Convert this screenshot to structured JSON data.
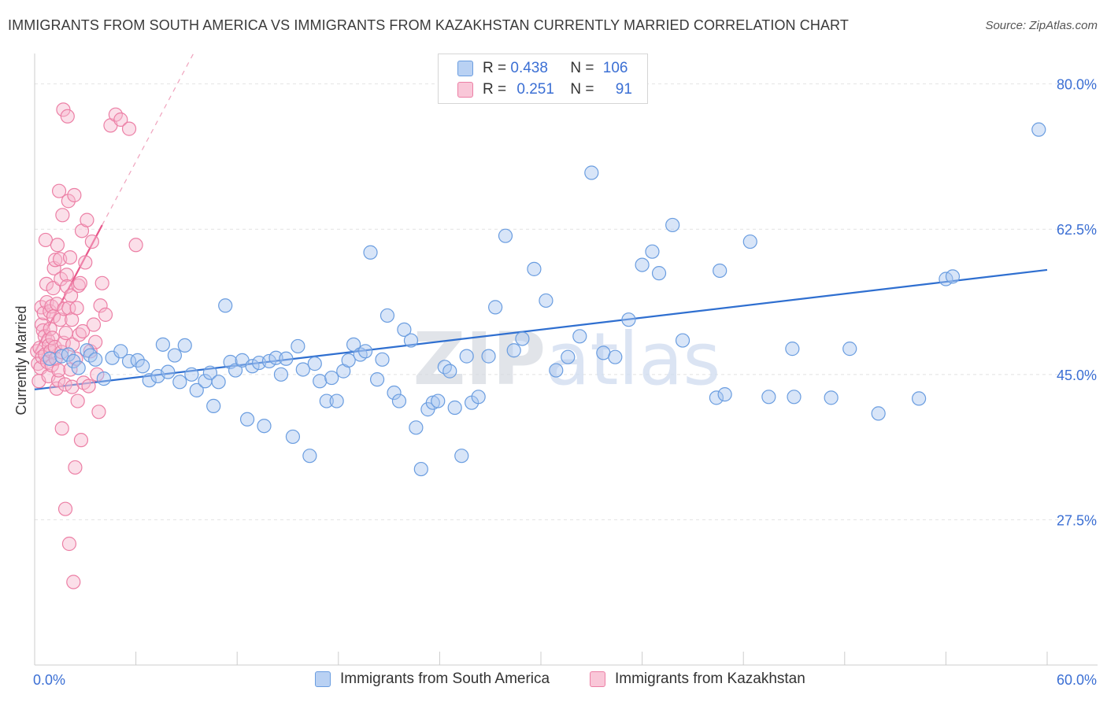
{
  "title": "IMMIGRANTS FROM SOUTH AMERICA VS IMMIGRANTS FROM KAZAKHSTAN CURRENTLY MARRIED CORRELATION CHART",
  "source": "Source: ZipAtlas.com",
  "watermark": "ZIPatlas",
  "chart_data": {
    "type": "scatter",
    "ylabel": "Currently Married",
    "xlim": [
      0,
      60
    ],
    "ylim": [
      10,
      83
    ],
    "x_tick_labels": [
      "0.0%",
      "60.0%"
    ],
    "y_ticks": [
      27.5,
      45.0,
      62.5,
      80.0
    ],
    "y_tick_labels": [
      "27.5%",
      "45.0%",
      "62.5%",
      "80.0%"
    ],
    "legend": [
      {
        "r_label": "R = ",
        "r_value": "0.438",
        "n_label": "N = ",
        "n_value": "106"
      },
      {
        "r_label": "R = ",
        "r_value": "0.251",
        "n_label": "N = ",
        "n_value": "91"
      }
    ],
    "series": [
      {
        "name": "Immigrants from South America",
        "color": "#6a9de0",
        "fill": "#a9c6ef",
        "trendline": {
          "x": [
            0,
            60
          ],
          "y": [
            43.2,
            57.6
          ]
        },
        "points": [
          [
            0.9,
            46.9
          ],
          [
            1.6,
            47.2
          ],
          [
            2.0,
            47.4
          ],
          [
            2.3,
            46.6
          ],
          [
            2.6,
            45.8
          ],
          [
            3.1,
            47.9
          ],
          [
            3.3,
            47.3
          ],
          [
            3.6,
            46.8
          ],
          [
            4.1,
            44.5
          ],
          [
            4.6,
            47.0
          ],
          [
            5.1,
            47.8
          ],
          [
            5.6,
            46.6
          ],
          [
            6.1,
            46.7
          ],
          [
            6.4,
            46.0
          ],
          [
            6.8,
            44.3
          ],
          [
            7.3,
            44.8
          ],
          [
            7.6,
            48.6
          ],
          [
            7.9,
            45.3
          ],
          [
            8.3,
            47.3
          ],
          [
            8.6,
            44.1
          ],
          [
            8.9,
            48.5
          ],
          [
            9.3,
            45.0
          ],
          [
            9.6,
            43.1
          ],
          [
            10.1,
            44.2
          ],
          [
            10.4,
            45.2
          ],
          [
            10.6,
            41.2
          ],
          [
            10.9,
            44.1
          ],
          [
            11.3,
            53.3
          ],
          [
            11.6,
            46.5
          ],
          [
            11.9,
            45.5
          ],
          [
            12.3,
            46.7
          ],
          [
            12.6,
            39.6
          ],
          [
            12.9,
            46.0
          ],
          [
            13.3,
            46.4
          ],
          [
            13.6,
            38.8
          ],
          [
            13.9,
            46.6
          ],
          [
            14.3,
            47.0
          ],
          [
            14.6,
            45.0
          ],
          [
            14.9,
            46.9
          ],
          [
            15.3,
            37.5
          ],
          [
            15.6,
            48.4
          ],
          [
            15.9,
            45.6
          ],
          [
            16.3,
            35.2
          ],
          [
            16.6,
            46.3
          ],
          [
            16.9,
            44.2
          ],
          [
            17.3,
            41.8
          ],
          [
            17.6,
            44.6
          ],
          [
            17.9,
            41.8
          ],
          [
            18.3,
            45.4
          ],
          [
            18.6,
            46.7
          ],
          [
            18.9,
            48.6
          ],
          [
            19.3,
            47.4
          ],
          [
            19.6,
            47.8
          ],
          [
            19.9,
            59.7
          ],
          [
            20.3,
            44.4
          ],
          [
            20.6,
            46.8
          ],
          [
            20.9,
            52.1
          ],
          [
            21.3,
            42.8
          ],
          [
            21.6,
            41.8
          ],
          [
            21.9,
            50.4
          ],
          [
            22.3,
            49.1
          ],
          [
            22.6,
            38.6
          ],
          [
            22.9,
            33.6
          ],
          [
            23.3,
            40.8
          ],
          [
            23.6,
            41.6
          ],
          [
            23.9,
            41.8
          ],
          [
            24.3,
            45.9
          ],
          [
            24.6,
            45.4
          ],
          [
            24.9,
            41.0
          ],
          [
            25.3,
            35.2
          ],
          [
            25.6,
            47.2
          ],
          [
            25.9,
            41.6
          ],
          [
            26.3,
            42.3
          ],
          [
            26.9,
            47.2
          ],
          [
            27.3,
            53.1
          ],
          [
            27.9,
            61.7
          ],
          [
            28.4,
            47.9
          ],
          [
            28.9,
            49.3
          ],
          [
            29.6,
            57.7
          ],
          [
            30.3,
            53.9
          ],
          [
            30.9,
            45.5
          ],
          [
            31.6,
            47.1
          ],
          [
            32.3,
            49.6
          ],
          [
            33.0,
            69.3
          ],
          [
            33.7,
            47.6
          ],
          [
            34.4,
            47.1
          ],
          [
            35.2,
            51.6
          ],
          [
            36.0,
            58.2
          ],
          [
            36.6,
            59.8
          ],
          [
            37.0,
            57.2
          ],
          [
            37.8,
            63.0
          ],
          [
            38.4,
            49.1
          ],
          [
            40.4,
            42.2
          ],
          [
            40.6,
            57.5
          ],
          [
            40.9,
            42.6
          ],
          [
            42.4,
            61.0
          ],
          [
            43.5,
            42.3
          ],
          [
            44.9,
            48.1
          ],
          [
            45.0,
            42.3
          ],
          [
            47.2,
            42.2
          ],
          [
            48.3,
            48.1
          ],
          [
            50.0,
            40.3
          ],
          [
            52.4,
            42.1
          ],
          [
            54.0,
            56.5
          ],
          [
            54.4,
            56.8
          ],
          [
            59.5,
            74.5
          ]
        ]
      },
      {
        "name": "Immigrants from Kazakhstan",
        "color": "#ec7fa5",
        "fill": "#f6b9ce",
        "trendline": {
          "x": [
            0,
            4
          ],
          "y": [
            47.6,
            63.0
          ]
        },
        "trendline_dashed": {
          "x": [
            4,
            9.5
          ],
          "y": [
            63.0,
            84.0
          ]
        },
        "points": [
          [
            0.15,
            47.8
          ],
          [
            0.2,
            46.3
          ],
          [
            0.25,
            44.2
          ],
          [
            0.3,
            48.2
          ],
          [
            0.35,
            45.8
          ],
          [
            0.4,
            53.1
          ],
          [
            0.42,
            51.0
          ],
          [
            0.45,
            47.1
          ],
          [
            0.5,
            50.3
          ],
          [
            0.55,
            52.4
          ],
          [
            0.6,
            49.6
          ],
          [
            0.62,
            47.4
          ],
          [
            0.65,
            61.2
          ],
          [
            0.7,
            55.9
          ],
          [
            0.72,
            53.7
          ],
          [
            0.75,
            46.5
          ],
          [
            0.8,
            49.1
          ],
          [
            0.82,
            44.8
          ],
          [
            0.85,
            48.5
          ],
          [
            0.9,
            52.6
          ],
          [
            0.92,
            50.5
          ],
          [
            0.95,
            47.8
          ],
          [
            1.0,
            53.2
          ],
          [
            1.02,
            46.1
          ],
          [
            1.05,
            49.4
          ],
          [
            1.1,
            55.4
          ],
          [
            1.12,
            52.0
          ],
          [
            1.15,
            57.8
          ],
          [
            1.2,
            48.3
          ],
          [
            1.22,
            58.8
          ],
          [
            1.25,
            46.9
          ],
          [
            1.3,
            43.3
          ],
          [
            1.32,
            53.5
          ],
          [
            1.35,
            60.6
          ],
          [
            1.4,
            44.3
          ],
          [
            1.42,
            45.5
          ],
          [
            1.45,
            67.1
          ],
          [
            1.5,
            58.9
          ],
          [
            1.52,
            51.6
          ],
          [
            1.55,
            56.5
          ],
          [
            1.6,
            47.7
          ],
          [
            1.62,
            38.5
          ],
          [
            1.65,
            64.2
          ],
          [
            1.7,
            76.9
          ],
          [
            1.72,
            48.8
          ],
          [
            1.75,
            52.9
          ],
          [
            1.8,
            43.8
          ],
          [
            1.82,
            28.8
          ],
          [
            1.85,
            50.0
          ],
          [
            1.9,
            57.0
          ],
          [
            1.92,
            55.6
          ],
          [
            1.95,
            76.1
          ],
          [
            2.0,
            65.9
          ],
          [
            2.02,
            53.0
          ],
          [
            2.05,
            24.6
          ],
          [
            2.1,
            59.1
          ],
          [
            2.12,
            45.6
          ],
          [
            2.15,
            54.5
          ],
          [
            2.2,
            51.6
          ],
          [
            2.22,
            43.5
          ],
          [
            2.25,
            48.6
          ],
          [
            2.3,
            20.0
          ],
          [
            2.35,
            66.6
          ],
          [
            2.4,
            33.8
          ],
          [
            2.45,
            46.9
          ],
          [
            2.5,
            53.0
          ],
          [
            2.55,
            41.8
          ],
          [
            2.6,
            55.7
          ],
          [
            2.65,
            49.8
          ],
          [
            2.7,
            56.0
          ],
          [
            2.75,
            37.1
          ],
          [
            2.8,
            62.3
          ],
          [
            2.85,
            50.2
          ],
          [
            2.9,
            44.0
          ],
          [
            3.0,
            58.5
          ],
          [
            3.1,
            63.6
          ],
          [
            3.2,
            43.6
          ],
          [
            3.3,
            47.8
          ],
          [
            3.4,
            61.0
          ],
          [
            3.5,
            51.0
          ],
          [
            3.6,
            48.9
          ],
          [
            3.7,
            45.0
          ],
          [
            3.8,
            40.5
          ],
          [
            3.9,
            53.3
          ],
          [
            4.0,
            56.0
          ],
          [
            4.2,
            52.2
          ],
          [
            4.5,
            75.0
          ],
          [
            4.8,
            76.3
          ],
          [
            5.1,
            75.7
          ],
          [
            5.6,
            74.6
          ],
          [
            6.0,
            60.6
          ]
        ]
      }
    ]
  },
  "bottom_legend": {
    "south_america": "Immigrants from South America",
    "kazakhstan": "Immigrants from Kazakhstan"
  }
}
